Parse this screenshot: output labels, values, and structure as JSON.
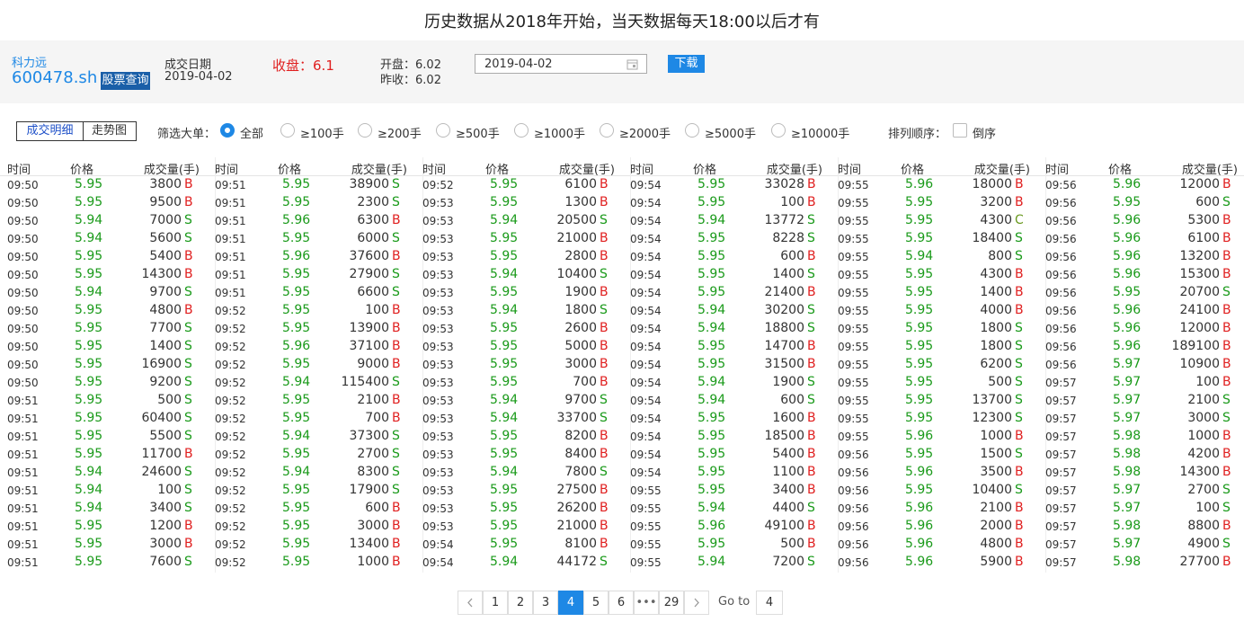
{
  "header": {
    "title": "历史数据从2018年开始，当天数据每天18:00以后才有"
  },
  "stock": {
    "name": "科力远",
    "code": "600478.sh",
    "query_button": "股票查询",
    "date_label": "成交日期",
    "date": "2019-04-02",
    "close_label": "收盘：",
    "close": "6.1",
    "open_label": "开盘：",
    "open": "6.02",
    "prev_close_label": "昨收：",
    "prev_close": "6.02",
    "date_input": "2019-04-02",
    "download_button": "下载"
  },
  "filters": {
    "tabs": [
      "成交明细",
      "走势图"
    ],
    "filter_label": "筛选大单：",
    "options": [
      "全部",
      "≥100手",
      "≥200手",
      "≥500手",
      "≥1000手",
      "≥2000手",
      "≥5000手",
      "≥10000手"
    ],
    "sort_label": "排列顺序：",
    "sort_option": "倒序"
  },
  "table": {
    "columns": [
      "时间",
      "价格",
      "成交量(手)"
    ],
    "groups": [
      [
        [
          "09:50",
          "5.95",
          "3800",
          "B"
        ],
        [
          "09:50",
          "5.95",
          "9500",
          "B"
        ],
        [
          "09:50",
          "5.94",
          "7000",
          "S"
        ],
        [
          "09:50",
          "5.94",
          "5600",
          "S"
        ],
        [
          "09:50",
          "5.95",
          "5400",
          "B"
        ],
        [
          "09:50",
          "5.95",
          "14300",
          "B"
        ],
        [
          "09:50",
          "5.94",
          "9700",
          "S"
        ],
        [
          "09:50",
          "5.95",
          "4800",
          "B"
        ],
        [
          "09:50",
          "5.95",
          "7700",
          "S"
        ],
        [
          "09:50",
          "5.95",
          "1400",
          "S"
        ],
        [
          "09:50",
          "5.95",
          "16900",
          "S"
        ],
        [
          "09:50",
          "5.95",
          "9200",
          "S"
        ],
        [
          "09:51",
          "5.95",
          "500",
          "S"
        ],
        [
          "09:51",
          "5.95",
          "60400",
          "S"
        ],
        [
          "09:51",
          "5.95",
          "5500",
          "S"
        ],
        [
          "09:51",
          "5.95",
          "11700",
          "B"
        ],
        [
          "09:51",
          "5.94",
          "24600",
          "S"
        ],
        [
          "09:51",
          "5.94",
          "100",
          "S"
        ],
        [
          "09:51",
          "5.94",
          "3400",
          "S"
        ],
        [
          "09:51",
          "5.95",
          "1200",
          "B"
        ],
        [
          "09:51",
          "5.95",
          "3000",
          "B"
        ],
        [
          "09:51",
          "5.95",
          "7600",
          "S"
        ]
      ],
      [
        [
          "09:51",
          "5.95",
          "38900",
          "S"
        ],
        [
          "09:51",
          "5.95",
          "2300",
          "S"
        ],
        [
          "09:51",
          "5.96",
          "6300",
          "B"
        ],
        [
          "09:51",
          "5.95",
          "6000",
          "S"
        ],
        [
          "09:51",
          "5.96",
          "37600",
          "B"
        ],
        [
          "09:51",
          "5.95",
          "27900",
          "S"
        ],
        [
          "09:51",
          "5.95",
          "6600",
          "S"
        ],
        [
          "09:52",
          "5.95",
          "100",
          "B"
        ],
        [
          "09:52",
          "5.95",
          "13900",
          "B"
        ],
        [
          "09:52",
          "5.96",
          "37100",
          "B"
        ],
        [
          "09:52",
          "5.95",
          "9000",
          "B"
        ],
        [
          "09:52",
          "5.94",
          "115400",
          "S"
        ],
        [
          "09:52",
          "5.95",
          "2100",
          "B"
        ],
        [
          "09:52",
          "5.95",
          "700",
          "B"
        ],
        [
          "09:52",
          "5.94",
          "37300",
          "S"
        ],
        [
          "09:52",
          "5.95",
          "2700",
          "S"
        ],
        [
          "09:52",
          "5.94",
          "8300",
          "S"
        ],
        [
          "09:52",
          "5.95",
          "17900",
          "S"
        ],
        [
          "09:52",
          "5.95",
          "600",
          "B"
        ],
        [
          "09:52",
          "5.95",
          "3000",
          "B"
        ],
        [
          "09:52",
          "5.95",
          "13400",
          "B"
        ],
        [
          "09:52",
          "5.95",
          "1000",
          "B"
        ]
      ],
      [
        [
          "09:52",
          "5.95",
          "6100",
          "B"
        ],
        [
          "09:53",
          "5.95",
          "1300",
          "B"
        ],
        [
          "09:53",
          "5.94",
          "20500",
          "S"
        ],
        [
          "09:53",
          "5.95",
          "21000",
          "B"
        ],
        [
          "09:53",
          "5.95",
          "2800",
          "B"
        ],
        [
          "09:53",
          "5.94",
          "10400",
          "S"
        ],
        [
          "09:53",
          "5.95",
          "1900",
          "B"
        ],
        [
          "09:53",
          "5.94",
          "1800",
          "S"
        ],
        [
          "09:53",
          "5.95",
          "2600",
          "B"
        ],
        [
          "09:53",
          "5.95",
          "5000",
          "B"
        ],
        [
          "09:53",
          "5.95",
          "3000",
          "B"
        ],
        [
          "09:53",
          "5.95",
          "700",
          "B"
        ],
        [
          "09:53",
          "5.94",
          "9700",
          "S"
        ],
        [
          "09:53",
          "5.94",
          "33700",
          "S"
        ],
        [
          "09:53",
          "5.95",
          "8200",
          "B"
        ],
        [
          "09:53",
          "5.95",
          "8400",
          "B"
        ],
        [
          "09:53",
          "5.94",
          "7800",
          "S"
        ],
        [
          "09:53",
          "5.95",
          "27500",
          "B"
        ],
        [
          "09:53",
          "5.95",
          "26200",
          "B"
        ],
        [
          "09:53",
          "5.95",
          "21000",
          "B"
        ],
        [
          "09:54",
          "5.95",
          "8100",
          "B"
        ],
        [
          "09:54",
          "5.94",
          "44172",
          "S"
        ]
      ],
      [
        [
          "09:54",
          "5.95",
          "33028",
          "B"
        ],
        [
          "09:54",
          "5.95",
          "100",
          "B"
        ],
        [
          "09:54",
          "5.94",
          "13772",
          "S"
        ],
        [
          "09:54",
          "5.95",
          "8228",
          "S"
        ],
        [
          "09:54",
          "5.95",
          "600",
          "B"
        ],
        [
          "09:54",
          "5.95",
          "1400",
          "S"
        ],
        [
          "09:54",
          "5.95",
          "21400",
          "B"
        ],
        [
          "09:54",
          "5.94",
          "30200",
          "S"
        ],
        [
          "09:54",
          "5.94",
          "18800",
          "S"
        ],
        [
          "09:54",
          "5.95",
          "14700",
          "B"
        ],
        [
          "09:54",
          "5.95",
          "31500",
          "B"
        ],
        [
          "09:54",
          "5.94",
          "1900",
          "S"
        ],
        [
          "09:54",
          "5.94",
          "600",
          "S"
        ],
        [
          "09:54",
          "5.95",
          "1600",
          "B"
        ],
        [
          "09:54",
          "5.95",
          "18500",
          "B"
        ],
        [
          "09:54",
          "5.95",
          "5400",
          "B"
        ],
        [
          "09:54",
          "5.95",
          "1100",
          "B"
        ],
        [
          "09:55",
          "5.95",
          "3400",
          "B"
        ],
        [
          "09:55",
          "5.94",
          "4400",
          "S"
        ],
        [
          "09:55",
          "5.96",
          "49100",
          "B"
        ],
        [
          "09:55",
          "5.95",
          "500",
          "B"
        ],
        [
          "09:55",
          "5.94",
          "7200",
          "S"
        ]
      ],
      [
        [
          "09:55",
          "5.96",
          "18000",
          "B"
        ],
        [
          "09:55",
          "5.95",
          "3200",
          "B"
        ],
        [
          "09:55",
          "5.95",
          "4300",
          "C"
        ],
        [
          "09:55",
          "5.95",
          "18400",
          "S"
        ],
        [
          "09:55",
          "5.94",
          "800",
          "S"
        ],
        [
          "09:55",
          "5.95",
          "4300",
          "B"
        ],
        [
          "09:55",
          "5.95",
          "1400",
          "B"
        ],
        [
          "09:55",
          "5.95",
          "4000",
          "B"
        ],
        [
          "09:55",
          "5.95",
          "1800",
          "S"
        ],
        [
          "09:55",
          "5.95",
          "1800",
          "S"
        ],
        [
          "09:55",
          "5.95",
          "6200",
          "S"
        ],
        [
          "09:55",
          "5.95",
          "500",
          "S"
        ],
        [
          "09:55",
          "5.95",
          "13700",
          "S"
        ],
        [
          "09:55",
          "5.95",
          "12300",
          "S"
        ],
        [
          "09:55",
          "5.96",
          "1000",
          "B"
        ],
        [
          "09:56",
          "5.95",
          "1500",
          "S"
        ],
        [
          "09:56",
          "5.96",
          "3500",
          "B"
        ],
        [
          "09:56",
          "5.95",
          "10400",
          "S"
        ],
        [
          "09:56",
          "5.96",
          "2100",
          "B"
        ],
        [
          "09:56",
          "5.96",
          "2000",
          "B"
        ],
        [
          "09:56",
          "5.96",
          "4800",
          "B"
        ],
        [
          "09:56",
          "5.96",
          "5900",
          "B"
        ]
      ],
      [
        [
          "09:56",
          "5.96",
          "12000",
          "B"
        ],
        [
          "09:56",
          "5.95",
          "600",
          "S"
        ],
        [
          "09:56",
          "5.96",
          "5300",
          "B"
        ],
        [
          "09:56",
          "5.96",
          "6100",
          "B"
        ],
        [
          "09:56",
          "5.96",
          "13200",
          "B"
        ],
        [
          "09:56",
          "5.96",
          "15300",
          "B"
        ],
        [
          "09:56",
          "5.95",
          "20700",
          "S"
        ],
        [
          "09:56",
          "5.96",
          "24100",
          "B"
        ],
        [
          "09:56",
          "5.96",
          "12000",
          "B"
        ],
        [
          "09:56",
          "5.96",
          "189100",
          "B"
        ],
        [
          "09:56",
          "5.97",
          "10900",
          "B"
        ],
        [
          "09:57",
          "5.97",
          "100",
          "B"
        ],
        [
          "09:57",
          "5.97",
          "2100",
          "S"
        ],
        [
          "09:57",
          "5.97",
          "3000",
          "S"
        ],
        [
          "09:57",
          "5.98",
          "1000",
          "B"
        ],
        [
          "09:57",
          "5.98",
          "4200",
          "B"
        ],
        [
          "09:57",
          "5.98",
          "14300",
          "B"
        ],
        [
          "09:57",
          "5.97",
          "2700",
          "S"
        ],
        [
          "09:57",
          "5.97",
          "100",
          "S"
        ],
        [
          "09:57",
          "5.98",
          "8800",
          "B"
        ],
        [
          "09:57",
          "5.97",
          "4900",
          "S"
        ],
        [
          "09:57",
          "5.98",
          "27700",
          "B"
        ]
      ]
    ]
  },
  "pagination": {
    "pages": [
      "1",
      "2",
      "3",
      "4",
      "5",
      "6",
      "29"
    ],
    "current": "4",
    "ellipsis": "•••",
    "goto_label": "Go to",
    "goto_value": "4"
  }
}
